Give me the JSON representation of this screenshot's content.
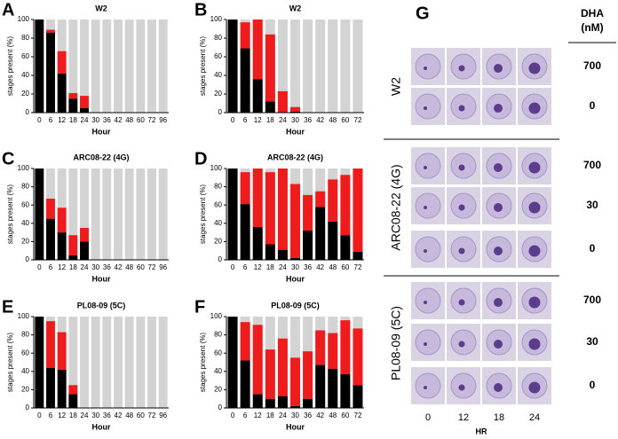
{
  "chart_data": [
    {
      "type": "bar",
      "panel": "A",
      "title": "W2",
      "x_label": "Hour",
      "y_label": "stages present (%)",
      "categories": [
        0,
        6,
        12,
        18,
        24,
        30,
        36,
        42,
        48,
        60,
        72,
        96
      ],
      "series": [
        {
          "color": "#000000",
          "values": [
            100,
            86,
            42,
            15,
            5,
            0,
            0,
            0,
            0,
            0,
            0,
            0
          ]
        },
        {
          "color": "#ee1c1c",
          "values": [
            0,
            3,
            24,
            6,
            13,
            0,
            0,
            0,
            0,
            0,
            0,
            0
          ]
        }
      ],
      "ylim": [
        0,
        100
      ],
      "yticks": [
        0,
        20,
        40,
        60,
        80,
        100
      ]
    },
    {
      "type": "bar",
      "panel": "B",
      "title": "W2",
      "x_label": "Hour",
      "y_label": "stages present (%)",
      "categories": [
        0,
        6,
        12,
        18,
        24,
        30,
        36,
        42,
        48,
        60,
        72
      ],
      "series": [
        {
          "color": "#000000",
          "values": [
            100,
            69,
            36,
            12,
            0,
            1,
            0,
            0,
            0,
            0,
            0
          ]
        },
        {
          "color": "#ee1c1c",
          "values": [
            0,
            28,
            64,
            72,
            23,
            5,
            0,
            0,
            0,
            0,
            0
          ]
        }
      ],
      "ylim": [
        0,
        100
      ],
      "yticks": [
        0,
        20,
        40,
        60,
        80,
        100
      ]
    },
    {
      "type": "bar",
      "panel": "C",
      "title": "ARC08-22 (4G)",
      "x_label": "Hour",
      "y_label": "stages present (%)",
      "categories": [
        0,
        6,
        12,
        18,
        24,
        30,
        36,
        42,
        48,
        60,
        72,
        96
      ],
      "series": [
        {
          "color": "#000000",
          "values": [
            100,
            45,
            30,
            5,
            20,
            0,
            0,
            0,
            0,
            0,
            0,
            0
          ]
        },
        {
          "color": "#ee1c1c",
          "values": [
            0,
            22,
            27,
            22,
            15,
            0,
            0,
            0,
            0,
            0,
            0,
            0
          ]
        }
      ],
      "ylim": [
        0,
        100
      ],
      "yticks": [
        0,
        20,
        40,
        60,
        80,
        100
      ]
    },
    {
      "type": "bar",
      "panel": "D",
      "title": "ARC08-22 (4G)",
      "x_label": "Hour",
      "y_label": "stages present (%)",
      "categories": [
        0,
        6,
        12,
        18,
        24,
        30,
        36,
        42,
        48,
        60,
        72
      ],
      "series": [
        {
          "color": "#000000",
          "values": [
            100,
            61,
            36,
            17,
            11,
            2,
            32,
            58,
            42,
            27,
            9
          ]
        },
        {
          "color": "#ee1c1c",
          "values": [
            0,
            35,
            64,
            79,
            89,
            81,
            39,
            17,
            46,
            66,
            91
          ]
        }
      ],
      "ylim": [
        0,
        100
      ],
      "yticks": [
        0,
        20,
        40,
        60,
        80,
        100
      ]
    },
    {
      "type": "bar",
      "panel": "E",
      "title": "PL08-09 (5C)",
      "x_label": "Hour",
      "y_label": "stages present (%)",
      "categories": [
        0,
        6,
        12,
        18,
        24,
        30,
        36,
        42,
        48,
        60,
        72,
        96
      ],
      "series": [
        {
          "color": "#000000",
          "values": [
            100,
            44,
            42,
            15,
            0,
            0,
            0,
            0,
            0,
            0,
            0,
            0
          ]
        },
        {
          "color": "#ee1c1c",
          "values": [
            0,
            51,
            41,
            10,
            0,
            0,
            0,
            0,
            0,
            0,
            0,
            0
          ]
        }
      ],
      "ylim": [
        0,
        100
      ],
      "yticks": [
        0,
        20,
        40,
        60,
        80,
        100
      ]
    },
    {
      "type": "bar",
      "panel": "F",
      "title": "PL08-09 (5C)",
      "x_label": "Hour",
      "y_label": "stages present (%)",
      "categories": [
        0,
        6,
        12,
        18,
        24,
        30,
        36,
        42,
        48,
        60,
        72
      ],
      "series": [
        {
          "color": "#000000",
          "values": [
            100,
            52,
            15,
            10,
            13,
            2,
            10,
            47,
            43,
            37,
            25
          ]
        },
        {
          "color": "#ee1c1c",
          "values": [
            0,
            42,
            76,
            54,
            63,
            53,
            52,
            38,
            39,
            59,
            62
          ]
        }
      ],
      "ylim": [
        0,
        100
      ],
      "yticks": [
        0,
        20,
        40,
        60,
        80,
        100
      ]
    }
  ],
  "image_panel": {
    "panel": "G",
    "header": [
      "DHA",
      "(nM)"
    ],
    "columns": [
      0,
      12,
      18,
      24
    ],
    "x_label": "HR",
    "groups": [
      {
        "name": "W2",
        "doses": [
          700,
          0
        ]
      },
      {
        "name": "ARC08-22 (4G)",
        "doses": [
          700,
          30,
          0
        ]
      },
      {
        "name": "PL08-09 (5C)",
        "doses": [
          700,
          30,
          0
        ]
      }
    ]
  }
}
